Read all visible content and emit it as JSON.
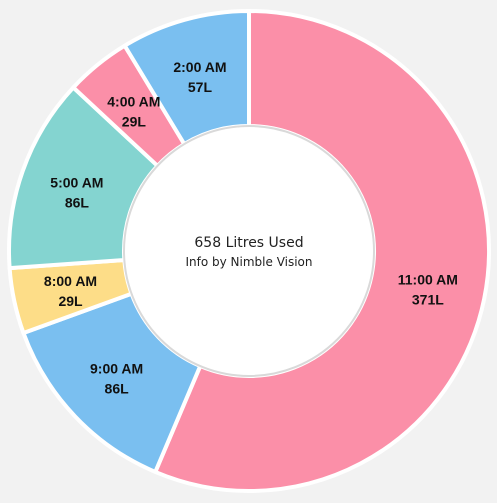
{
  "chart_data": {
    "type": "pie",
    "center_total": "658 Litres Used",
    "center_subtitle": "Info by Nimble Vision",
    "unit": "L",
    "segments": [
      {
        "label": "11:00 AM",
        "value": 371,
        "value_label": "371L",
        "color": "#fb8fa8"
      },
      {
        "label": "9:00 AM",
        "value": 86,
        "value_label": "86L",
        "color": "#7abff0"
      },
      {
        "label": "8:00 AM",
        "value": 29,
        "value_label": "29L",
        "color": "#fddd88"
      },
      {
        "label": "5:00 AM",
        "value": 86,
        "value_label": "86L",
        "color": "#84d4d0"
      },
      {
        "label": "4:00 AM",
        "value": 29,
        "value_label": "29L",
        "color": "#fb8fa8"
      },
      {
        "label": "2:00 AM",
        "value": 57,
        "value_label": "57L",
        "color": "#7abff0"
      }
    ],
    "total": 658
  }
}
